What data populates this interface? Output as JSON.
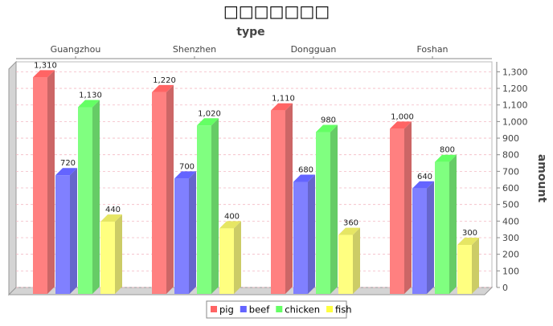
{
  "chart_data": {
    "type": "bar",
    "title": "□□□□□□□",
    "xlabel": "type",
    "ylabel": "amount",
    "categories": [
      "Guangzhou",
      "Shenzhen",
      "Dongguan",
      "Foshan"
    ],
    "series": [
      {
        "name": "pig",
        "values": [
          1310,
          1220,
          1110,
          1000
        ]
      },
      {
        "name": "beef",
        "values": [
          720,
          700,
          680,
          640
        ]
      },
      {
        "name": "chicken",
        "values": [
          1130,
          1020,
          980,
          800
        ]
      },
      {
        "name": "fish",
        "values": [
          440,
          400,
          360,
          300
        ]
      }
    ],
    "ylim": [
      0,
      1360
    ],
    "y_ticks": [
      0,
      100,
      200,
      300,
      400,
      500,
      600,
      700,
      800,
      900,
      1000,
      1100,
      1200,
      1300
    ],
    "y_tick_labels": [
      "0",
      "100",
      "200",
      "300",
      "400",
      "500",
      "600",
      "700",
      "800",
      "900",
      "1,000",
      "1,100",
      "1,200",
      "1,300"
    ],
    "value_labels": [
      [
        "1,310",
        "1,220",
        "1,110",
        "1,000"
      ],
      [
        "720",
        "700",
        "680",
        "640"
      ],
      [
        "1,130",
        "1,020",
        "980",
        "800"
      ],
      [
        "440",
        "400",
        "360",
        "300"
      ]
    ],
    "x_axis_position": "top",
    "y_axis_position": "right",
    "legend_position": "bottom",
    "grid": true,
    "colors": [
      "#ff8080",
      "#8080ff",
      "#80ff80",
      "#ffff80"
    ],
    "colors_dark": [
      "#cc6666",
      "#6666cc",
      "#66cc66",
      "#cccc66"
    ],
    "colors_top": [
      "#ff6464",
      "#6464ff",
      "#64ff64",
      "#e6e664"
    ]
  }
}
